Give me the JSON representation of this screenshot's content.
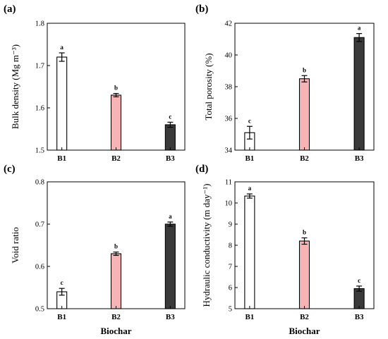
{
  "chart_data": [
    {
      "panel": "(a)",
      "type": "bar",
      "ylabel": "Bulk density (Mg m⁻³)",
      "xlabel": "",
      "categories": [
        "B1",
        "B2",
        "B3"
      ],
      "values": [
        1.72,
        1.63,
        1.56
      ],
      "errors": [
        0.01,
        0.004,
        0.006
      ],
      "significance": [
        "a",
        "b",
        "c"
      ],
      "ylim": [
        1.5,
        1.8
      ],
      "yticks": [
        1.5,
        1.6,
        1.7,
        1.8
      ],
      "ytick_labels": [
        "1.5",
        "1.6",
        "1.7",
        "1.8"
      ],
      "bar_colors": [
        "#ffffff",
        "#f8b4b4",
        "#3a3a3a"
      ]
    },
    {
      "panel": "(b)",
      "type": "bar",
      "ylabel": "Total porosity (%)",
      "xlabel": "",
      "categories": [
        "B1",
        "B2",
        "B3"
      ],
      "values": [
        35.1,
        38.5,
        41.1
      ],
      "errors": [
        0.4,
        0.2,
        0.25
      ],
      "significance": [
        "c",
        "b",
        "a"
      ],
      "ylim": [
        34,
        42
      ],
      "yticks": [
        34,
        36,
        38,
        40,
        42
      ],
      "ytick_labels": [
        "34",
        "36",
        "38",
        "40",
        "42"
      ],
      "bar_colors": [
        "#ffffff",
        "#f8b4b4",
        "#3a3a3a"
      ]
    },
    {
      "panel": "(c)",
      "type": "bar",
      "ylabel": "Void ratio",
      "xlabel": "Biochar",
      "categories": [
        "B1",
        "B2",
        "B3"
      ],
      "values": [
        0.54,
        0.63,
        0.7
      ],
      "errors": [
        0.008,
        0.004,
        0.005
      ],
      "significance": [
        "c",
        "b",
        "a"
      ],
      "ylim": [
        0.5,
        0.8
      ],
      "yticks": [
        0.5,
        0.6,
        0.7,
        0.8
      ],
      "ytick_labels": [
        "0.5",
        "0.6",
        "0.7",
        "0.8"
      ],
      "bar_colors": [
        "#ffffff",
        "#f8b4b4",
        "#3a3a3a"
      ]
    },
    {
      "panel": "(d)",
      "type": "bar",
      "ylabel": "Hydraulic conductivity (m day⁻¹)",
      "xlabel": "Biochar",
      "categories": [
        "B1",
        "B2",
        "B3"
      ],
      "values": [
        10.33,
        8.2,
        5.95
      ],
      "errors": [
        0.1,
        0.15,
        0.12
      ],
      "significance": [
        "a",
        "b",
        "c"
      ],
      "ylim": [
        5,
        11
      ],
      "yticks": [
        5,
        6,
        7,
        8,
        9,
        10,
        11
      ],
      "ytick_labels": [
        "5",
        "6",
        "7",
        "8",
        "9",
        "10",
        "11"
      ],
      "bar_colors": [
        "#ffffff",
        "#f8b4b4",
        "#3a3a3a"
      ]
    }
  ]
}
